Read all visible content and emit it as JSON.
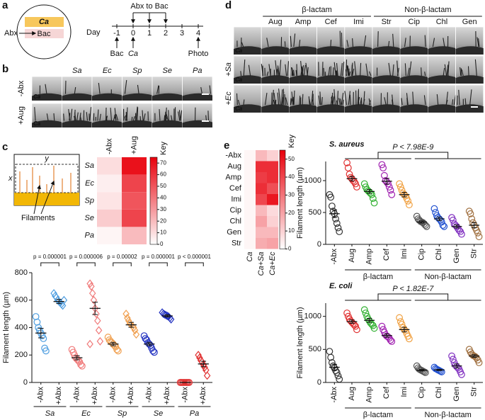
{
  "panel_labels": [
    "a",
    "b",
    "c",
    "d",
    "e"
  ],
  "panel_a": {
    "plate_top": "Ca",
    "plate_bottom": "Bac",
    "abx": "Abx",
    "day": "Day",
    "days": [
      "-1",
      "0",
      "1",
      "2",
      "3",
      "4"
    ],
    "abx_to_bac": "Abx to Bac",
    "event_bac": "Bac",
    "event_ca": "Ca",
    "event_photo": "Photo"
  },
  "panel_b": {
    "columns": [
      "Sa",
      "Ec",
      "Sp",
      "Se",
      "Pa"
    ],
    "rows": [
      "-Abx",
      "+Aug"
    ],
    "tile_label": "Ca"
  },
  "panel_c_diagram": {
    "x": "x",
    "y": "y",
    "filaments": "Filaments"
  },
  "panel_d": {
    "groups": [
      "β-lactam",
      "Non-β-lactam"
    ],
    "columns": [
      "Aug",
      "Amp",
      "Cef",
      "Imi",
      "Str",
      "Cip",
      "Chl",
      "Gen"
    ],
    "rows": [
      "+Sa",
      "+Ec"
    ],
    "tile_label": "Ca"
  },
  "chart_data": [
    {
      "type": "heatmap",
      "rows": [
        "Sa",
        "Ec",
        "Sp",
        "Se",
        "Pa"
      ],
      "columns": [
        "-Abx",
        "+Aug"
      ],
      "values": [
        [
          10,
          70
        ],
        [
          5,
          55
        ],
        [
          8,
          50
        ],
        [
          15,
          55
        ],
        [
          3,
          20
        ]
      ],
      "colors": [
        "#ffffff",
        "#e8000b"
      ],
      "colorbar_title": "Key",
      "clim": [
        0,
        75
      ],
      "cticks": [
        0,
        10,
        20,
        30,
        40,
        50,
        60,
        70
      ]
    },
    {
      "type": "strip",
      "ylabel": "Filament length (µm)",
      "categories": [
        "-Abx",
        "+Abx",
        "-Abx",
        "+Abx",
        "-Abx",
        "+Abx",
        "-Abx",
        "+Abx",
        "-Abx",
        "+Abx"
      ],
      "group_labels": [
        "Sa",
        "Ec",
        "Sp",
        "Se",
        "Pa"
      ],
      "p_values": [
        "p = 0.000001",
        "p = 0.000006",
        "p = 0.00002",
        "p = 0.000001",
        "p < 0.000001"
      ],
      "ylim": [
        0,
        800
      ],
      "yticks": [
        0,
        200,
        400,
        600,
        800
      ],
      "groups": [
        {
          "color": "#4d9de0",
          "marker": "circle",
          "values": [
            480,
            440,
            400,
            380,
            360,
            340,
            320,
            250,
            230
          ],
          "mean": 360,
          "error": 35
        },
        {
          "color": "#4d9de0",
          "marker": "diamond",
          "values": [
            650,
            630,
            620,
            600,
            590,
            580,
            570,
            560,
            600
          ],
          "mean": 590,
          "error": 15
        },
        {
          "color": "#f07a7a",
          "marker": "circle",
          "values": [
            240,
            220,
            200,
            180,
            170,
            160,
            150,
            130,
            120
          ],
          "mean": 180,
          "error": 15
        },
        {
          "color": "#f07a7a",
          "marker": "diamond",
          "values": [
            720,
            700,
            650,
            600,
            540,
            500,
            450,
            380,
            300,
            280
          ],
          "mean": 540,
          "error": 45
        },
        {
          "color": "#f0a050",
          "marker": "circle",
          "values": [
            330,
            310,
            300,
            290,
            280,
            270,
            260,
            240,
            230
          ],
          "mean": 280,
          "error": 12
        },
        {
          "color": "#f0a050",
          "marker": "diamond",
          "values": [
            500,
            470,
            450,
            430,
            420,
            410,
            400,
            380,
            350
          ],
          "mean": 420,
          "error": 18
        },
        {
          "color": "#2030c0",
          "marker": "circle",
          "values": [
            340,
            320,
            310,
            290,
            280,
            270,
            250,
            230,
            220
          ],
          "mean": 280,
          "error": 12
        },
        {
          "color": "#2030c0",
          "marker": "diamond",
          "values": [
            510,
            500,
            495,
            490,
            485,
            480,
            470,
            460
          ],
          "mean": 485,
          "error": 8
        },
        {
          "color": "#e03030",
          "marker": "circle",
          "values": [
            0,
            0,
            0,
            0,
            0,
            0,
            0,
            0
          ],
          "mean": 0,
          "error": 0
        },
        {
          "color": "#e03030",
          "marker": "diamond",
          "values": [
            200,
            180,
            160,
            150,
            130,
            110,
            90,
            50
          ],
          "mean": 135,
          "error": 20
        }
      ]
    },
    {
      "type": "heatmap",
      "rows": [
        "-Abx",
        "Aug",
        "Amp",
        "Cef",
        "Imi",
        "Cip",
        "Chl",
        "Gen",
        "Str"
      ],
      "columns": [
        "Ca",
        "Ca+Sa",
        "Ca+Ec"
      ],
      "values": [
        [
          2,
          15,
          10
        ],
        [
          2,
          45,
          45
        ],
        [
          2,
          42,
          45
        ],
        [
          2,
          45,
          38
        ],
        [
          2,
          40,
          50
        ],
        [
          2,
          15,
          8
        ],
        [
          2,
          20,
          10
        ],
        [
          2,
          15,
          15
        ],
        [
          2,
          18,
          20
        ]
      ],
      "colors": [
        "#ffffff",
        "#e8000b"
      ],
      "colorbar_title": "Key",
      "clim": [
        0,
        55
      ],
      "cticks": [
        0,
        10,
        20,
        30,
        40,
        50
      ]
    },
    {
      "type": "strip",
      "title": "S. aureus",
      "ylabel": "Filament length (µm)",
      "categories": [
        "-Abx",
        "Aug",
        "Amp",
        "Cef",
        "Imi",
        "Cip",
        "Chl",
        "Gen",
        "Str"
      ],
      "class_labels": [
        "β-lactam",
        "Non-β-lactam"
      ],
      "p_value": "P < 7.98E-9",
      "ylim": [
        0,
        1300
      ],
      "yticks": [
        0,
        500,
        1000
      ],
      "groups": [
        {
          "color": "#333333",
          "marker": "circle",
          "values": [
            780,
            740,
            600,
            520,
            480,
            400,
            330,
            260,
            200
          ],
          "mean": 480,
          "error": 60
        },
        {
          "color": "#e03030",
          "marker": "circle",
          "values": [
            1280,
            1200,
            1100,
            1050,
            1030,
            1000,
            980,
            950,
            900
          ],
          "mean": 1030,
          "error": 35
        },
        {
          "color": "#30b030",
          "marker": "circle",
          "values": [
            950,
            900,
            860,
            840,
            820,
            800,
            780,
            720,
            650
          ],
          "mean": 830,
          "error": 30
        },
        {
          "color": "#a020b0",
          "marker": "circle",
          "values": [
            1250,
            1200,
            1080,
            1000,
            980,
            950,
            900,
            850,
            780
          ],
          "mean": 990,
          "error": 45
        },
        {
          "color": "#f0a040",
          "marker": "circle",
          "values": [
            950,
            900,
            850,
            800,
            780,
            760,
            720,
            680,
            620
          ],
          "mean": 780,
          "error": 35
        },
        {
          "color": "#555555",
          "marker": "circle",
          "values": [
            440,
            400,
            380,
            360,
            350,
            340,
            320,
            300,
            280
          ],
          "mean": 350,
          "error": 18
        },
        {
          "color": "#2050d0",
          "marker": "circle",
          "values": [
            560,
            500,
            450,
            420,
            400,
            380,
            350,
            300,
            280
          ],
          "mean": 400,
          "error": 28
        },
        {
          "color": "#8030c0",
          "marker": "circle",
          "values": [
            420,
            380,
            320,
            300,
            280,
            250,
            220,
            200,
            160
          ],
          "mean": 280,
          "error": 25
        },
        {
          "color": "#a07040",
          "marker": "circle",
          "values": [
            520,
            480,
            400,
            340,
            300,
            260,
            220,
            180,
            120
          ],
          "mean": 300,
          "error": 40
        }
      ]
    },
    {
      "type": "strip",
      "title": "E. coli",
      "ylabel": "Filament length (µm)",
      "categories": [
        "-Abx",
        "Aug",
        "Amp",
        "Cef",
        "Imi",
        "Cip",
        "Chl",
        "Gen",
        "Str"
      ],
      "class_labels": [
        "β-lactam",
        "Non-β-lactam"
      ],
      "p_value": "P < 1.82E-7",
      "ylim": [
        0,
        1200
      ],
      "yticks": [
        0,
        500,
        1000
      ],
      "groups": [
        {
          "color": "#333333",
          "marker": "circle",
          "values": [
            470,
            380,
            300,
            250,
            220,
            180,
            150,
            100,
            50
          ],
          "mean": 230,
          "error": 45
        },
        {
          "color": "#e03030",
          "marker": "circle",
          "values": [
            1050,
            1000,
            960,
            930,
            910,
            890,
            870,
            850,
            800
          ],
          "mean": 920,
          "error": 25
        },
        {
          "color": "#30b030",
          "marker": "circle",
          "values": [
            1100,
            1050,
            1000,
            960,
            930,
            900,
            880,
            860,
            820
          ],
          "mean": 940,
          "error": 30
        },
        {
          "color": "#a020b0",
          "marker": "circle",
          "values": [
            850,
            800,
            760,
            720,
            700,
            690,
            670,
            640,
            620
          ],
          "mean": 710,
          "error": 25
        },
        {
          "color": "#f0a040",
          "marker": "circle",
          "values": [
            980,
            920,
            880,
            830,
            800,
            780,
            740,
            700,
            660
          ],
          "mean": 800,
          "error": 35
        },
        {
          "color": "#555555",
          "marker": "circle",
          "values": [
            250,
            220,
            200,
            190,
            180,
            170,
            160,
            150
          ],
          "mean": 185,
          "error": 12
        },
        {
          "color": "#2050d0",
          "marker": "circle",
          "values": [
            230,
            210,
            200,
            190,
            180,
            170,
            160
          ],
          "mean": 190,
          "error": 10
        },
        {
          "color": "#8030c0",
          "marker": "circle",
          "values": [
            400,
            350,
            300,
            260,
            240,
            220,
            200,
            160,
            120
          ],
          "mean": 250,
          "error": 30
        },
        {
          "color": "#a07040",
          "marker": "circle",
          "values": [
            500,
            460,
            430,
            410,
            400,
            390,
            370,
            340,
            300
          ],
          "mean": 400,
          "error": 20
        }
      ]
    }
  ]
}
